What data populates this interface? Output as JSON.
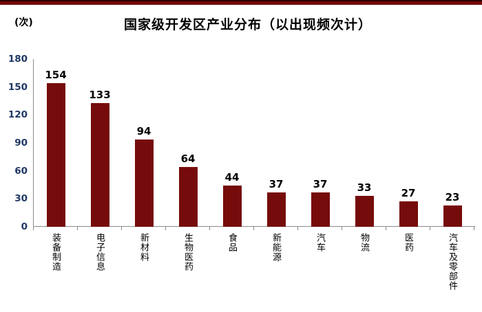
{
  "header": {
    "unit_label": "(次)",
    "title": "国家级开发区产业分布（以出现频次计）"
  },
  "chart_data": {
    "type": "bar",
    "title": "国家级开发区产业分布（以出现频次计）",
    "ylabel": "(次)",
    "xlabel": "",
    "categories": [
      "装备制造",
      "电子信息",
      "新材料",
      "生物医药",
      "食品",
      "新能源",
      "汽车",
      "物流",
      "医药",
      "汽车及零部件"
    ],
    "values": [
      154,
      133,
      94,
      64,
      44,
      37,
      37,
      33,
      27,
      23
    ],
    "ylim": [
      0,
      180
    ],
    "yticks": [
      0,
      30,
      60,
      90,
      120,
      150,
      180
    ],
    "grid": false,
    "legend": false,
    "data_labels": true,
    "category_text_orientation": "vertical",
    "bar_color": "#760b0b",
    "axis_color": "#8a8a8a",
    "ytick_label_color": "#1f3864",
    "data_label_color": "#000000",
    "banner_color": "#750909"
  }
}
